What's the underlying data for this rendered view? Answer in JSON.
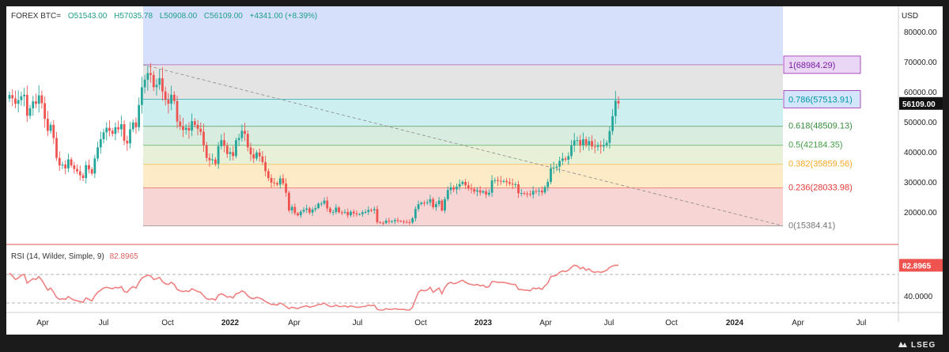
{
  "header": {
    "symbol": "FOREX BTC=",
    "open": "O51543.00",
    "high": "H57035.78",
    "low": "L50908.00",
    "close": "C56109.00",
    "change": "+4341.00 (+8.39%)"
  },
  "currency": "USD",
  "brand": "LSEG",
  "rsi_header": {
    "label": "RSI (14, Wilder, Simple, 9)",
    "value": "82.8965"
  },
  "colors": {
    "bull": "#26a69a",
    "bear": "#ef5350",
    "rsi_line": "#f08080",
    "last_price_bg": "#111111",
    "rsi_last_bg": "#ef5350"
  },
  "chart_data": [
    {
      "type": "candlestick",
      "title": "FOREX BTC=",
      "ylabel": "USD",
      "ylim": [
        10000,
        80000
      ],
      "y_ticks": [
        "80000.00",
        "70000.00",
        "60000.00",
        "50000.00",
        "40000.00",
        "30000.00",
        "20000.00"
      ],
      "x_ticks": [
        "Apr",
        "Jul",
        "Oct",
        "2022",
        "Apr",
        "Jul",
        "Oct",
        "2023",
        "Apr",
        "Jul",
        "Oct",
        "2024",
        "Apr",
        "Jul"
      ],
      "last_price": 56109.0,
      "last_price_label": "56109.00",
      "fibonacci": {
        "levels": [
          {
            "ratio": 1,
            "price": 68984.29,
            "label": "1(68984.29)",
            "color": "#9c27b0"
          },
          {
            "ratio": 0.786,
            "price": 57513.91,
            "label": "0.786(57513.91)",
            "color": "#0097a7"
          },
          {
            "ratio": 0.618,
            "price": 48509.13,
            "label": "0.618(48509.13)",
            "color": "#388e3c"
          },
          {
            "ratio": 0.5,
            "price": 42184.35,
            "label": "0.5(42184.35)",
            "color": "#43a047"
          },
          {
            "ratio": 0.382,
            "price": 35859.56,
            "label": "0.382(35859.56)",
            "color": "#f9a825"
          },
          {
            "ratio": 0.236,
            "price": 28033.98,
            "label": "0.236(28033.98)",
            "color": "#e53935"
          },
          {
            "ratio": 0,
            "price": 15384.41,
            "label": "0(15384.41)",
            "color": "#777777"
          }
        ]
      },
      "weekly_close": [
        58900,
        57800,
        56000,
        57200,
        58500,
        59000,
        52000,
        54500,
        56800,
        56000,
        58800,
        56200,
        51000,
        47000,
        49000,
        44600,
        38000,
        35500,
        35800,
        34500,
        37500,
        35500,
        34300,
        33500,
        32200,
        31300,
        35600,
        34200,
        32800,
        37800,
        41500,
        44200,
        46500,
        48000,
        47000,
        46000,
        48200,
        47500,
        49200,
        43700,
        42800,
        47500,
        49800,
        48200,
        55600,
        61500,
        64000,
        66200,
        65600,
        61500,
        62300,
        64500,
        60100,
        57300,
        56000,
        59000,
        56900,
        50100,
        48500,
        47300,
        48000,
        47100,
        50200,
        49000,
        47700,
        46700,
        42200,
        38000,
        37200,
        37500,
        36000,
        41900,
        43900,
        42000,
        39300,
        39900,
        38600,
        43900,
        44600,
        47000,
        46000,
        41500,
        39200,
        37800,
        39800,
        38500,
        36600,
        33600,
        31300,
        29800,
        29600,
        29100,
        31200,
        29500,
        26400,
        20500,
        21700,
        19600,
        18900,
        20100,
        20700,
        21200,
        19800,
        20800,
        21300,
        22800,
        22800,
        23800,
        21200,
        20000,
        20000,
        21500,
        19900,
        19800,
        20000,
        18900,
        20100,
        19500,
        19200,
        19300,
        19900,
        20000,
        20700,
        20600,
        21000,
        16600,
        16400,
        16300,
        17100,
        16800,
        16900,
        17300,
        17000,
        16900,
        16700,
        16600,
        16500,
        17900,
        21000,
        22600,
        23100,
        22900,
        23200,
        24300,
        21600,
        22600,
        23800,
        20500,
        24300,
        27300,
        28200,
        27500,
        28400,
        29300,
        30000,
        28900,
        27800,
        27600,
        26800,
        27200,
        26500,
        26900,
        25800,
        26400,
        30500,
        30600,
        30400,
        30200,
        30300,
        29900,
        29400,
        29100,
        29200,
        26200,
        26300,
        26100,
        26000,
        25800,
        27000,
        26900,
        27100,
        26500,
        28300,
        30000,
        34500,
        34700,
        35100,
        37000,
        37800,
        37400,
        38600,
        42100,
        43800,
        43900,
        42200,
        44200,
        42300,
        43600,
        41800,
        41700,
        42100,
        41800,
        42200,
        43000,
        46900,
        51900,
        57000,
        56109
      ]
    },
    {
      "type": "line",
      "title": "RSI (14, Wilder, Simple, 9)",
      "last_value": 82.8965,
      "last_value_label": "82.8965",
      "y_ticks": [
        "40.0000"
      ],
      "guides": [
        70,
        30
      ],
      "rsi_weekly": [
        72,
        68,
        63,
        65,
        69,
        70,
        58,
        61,
        64,
        63,
        67,
        62,
        55,
        48,
        51,
        45,
        38,
        35,
        36,
        35,
        39,
        36,
        34,
        33,
        32,
        31,
        37,
        35,
        33,
        40,
        45,
        48,
        51,
        52,
        51,
        50,
        52,
        51,
        53,
        46,
        45,
        50,
        53,
        51,
        59,
        65,
        67,
        69,
        68,
        63,
        64,
        66,
        60,
        57,
        56,
        59,
        56,
        49,
        47,
        46,
        47,
        46,
        50,
        48,
        46,
        45,
        40,
        36,
        35,
        36,
        34,
        41,
        43,
        41,
        38,
        39,
        37,
        43,
        44,
        47,
        45,
        40,
        37,
        36,
        38,
        37,
        35,
        32,
        30,
        28,
        28,
        27,
        30,
        28,
        25,
        22,
        24,
        23,
        22,
        24,
        25,
        26,
        24,
        25,
        26,
        28,
        28,
        30,
        27,
        25,
        25,
        27,
        25,
        25,
        26,
        24,
        26,
        25,
        24,
        24,
        25,
        25,
        27,
        26,
        27,
        21,
        20,
        20,
        22,
        21,
        21,
        22,
        21,
        21,
        21,
        20,
        20,
        24,
        35,
        45,
        48,
        47,
        48,
        52,
        45,
        48,
        51,
        43,
        52,
        57,
        59,
        57,
        58,
        60,
        62,
        59,
        57,
        56,
        55,
        56,
        54,
        55,
        52,
        53,
        60,
        60,
        59,
        59,
        59,
        58,
        57,
        56,
        56,
        49,
        49,
        48,
        48,
        47,
        51,
        50,
        51,
        49,
        54,
        58,
        67,
        68,
        69,
        73,
        75,
        74,
        76,
        80,
        83,
        82,
        78,
        80,
        76,
        78,
        74,
        73,
        74,
        73,
        74,
        76,
        80,
        82,
        83,
        82.8965
      ]
    }
  ]
}
